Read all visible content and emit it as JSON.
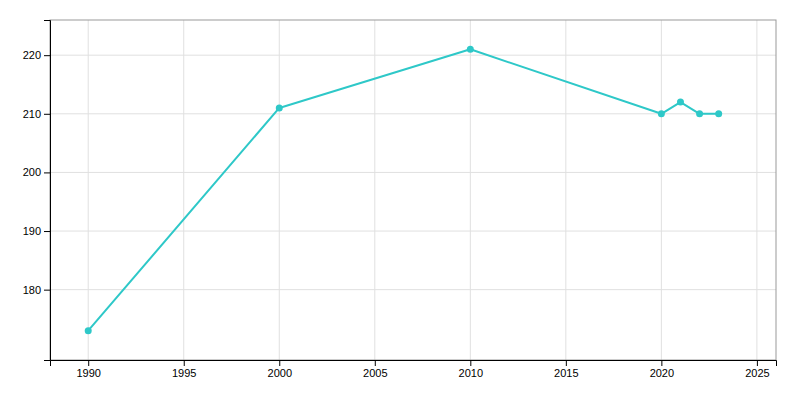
{
  "chart_data": {
    "type": "line",
    "x": [
      1990,
      2000,
      2010,
      2020,
      2021,
      2022,
      2023
    ],
    "values": [
      173,
      211,
      221,
      210,
      212,
      210,
      210
    ],
    "color": "#2ec8c8",
    "marker": "circle",
    "xlim": [
      1988,
      2026
    ],
    "ylim": [
      168,
      226
    ],
    "xticks": [
      1990,
      1995,
      2000,
      2005,
      2010,
      2015,
      2020,
      2025
    ],
    "yticks": [
      180,
      190,
      200,
      210,
      220
    ],
    "grid": true
  }
}
